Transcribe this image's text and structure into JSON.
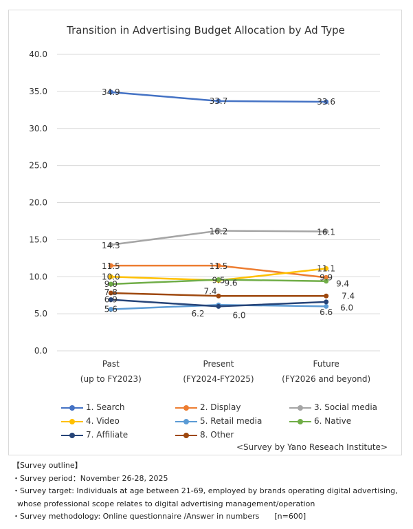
{
  "chart_data": {
    "type": "line",
    "title": "Transition in Advertising Budget Allocation by Ad Type",
    "categories": [
      [
        "Past",
        "(up to FY2023)"
      ],
      [
        "Present",
        "(FY2024-FY2025)"
      ],
      [
        "Future",
        "(FY2026 and beyond)"
      ]
    ],
    "ylim": [
      0,
      40
    ],
    "yticks": [
      "0.0",
      "5.0",
      "10.0",
      "15.0",
      "20.0",
      "25.0",
      "30.0",
      "35.0",
      "40.0"
    ],
    "grid": true,
    "legend_position": "bottom",
    "series": [
      {
        "name": "1. Search",
        "color": "#4472c4",
        "values": [
          34.9,
          33.7,
          33.6
        ],
        "labels": [
          "34.9",
          "33.7",
          "33.6"
        ]
      },
      {
        "name": "2. Display",
        "color": "#ed7d31",
        "values": [
          11.5,
          11.5,
          9.9
        ],
        "labels": [
          "11.5",
          "11.5",
          "9.9"
        ]
      },
      {
        "name": "3. Social media",
        "color": "#a5a5a5",
        "values": [
          14.3,
          16.2,
          16.1
        ],
        "labels": [
          "14.3",
          "16.2",
          "16.1"
        ]
      },
      {
        "name": "4. Video",
        "color": "#ffc000",
        "values": [
          10.0,
          9.5,
          11.1
        ],
        "labels": [
          "10.0",
          "9.5",
          "11.1"
        ]
      },
      {
        "name": "5. Retail media",
        "color": "#5b9bd5",
        "values": [
          5.6,
          6.2,
          6.0
        ],
        "labels": [
          "5.6",
          "6.2",
          "6.0"
        ]
      },
      {
        "name": "6. Native",
        "color": "#70ad47",
        "values": [
          9.0,
          9.6,
          9.4
        ],
        "labels": [
          "9.0",
          "9.6",
          "9.4"
        ]
      },
      {
        "name": "7. Affiliate",
        "color": "#264478",
        "values": [
          6.9,
          6.0,
          6.6
        ],
        "labels": [
          "6.9",
          "6.0",
          "6.6"
        ]
      },
      {
        "name": "8. Other",
        "color": "#9e480e",
        "values": [
          7.8,
          7.4,
          7.4
        ],
        "labels": [
          "7.8",
          "7.4",
          "7.4"
        ]
      }
    ]
  },
  "source_note": "<Survey by Yano Reseach Institute>",
  "outline": {
    "heading": "【Survey outline】",
    "lines": [
      "・Survey period：November 26-28, 2025",
      "・Survey target: Individuals at age between 21-69, employed by brands operating digital advertising,",
      "  whose professional scope relates to digital advertising management/operation",
      "・Survey methodology: Online questionnaire /Answer in numbers　　[n=600]"
    ]
  }
}
